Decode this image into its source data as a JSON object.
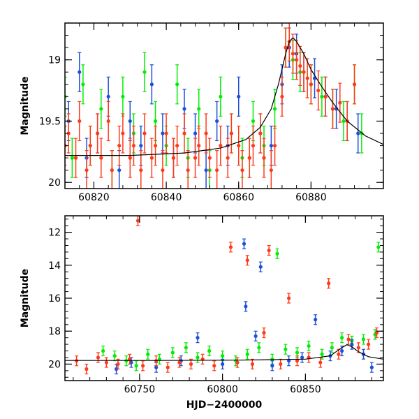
{
  "chart_data": [
    {
      "type": "scatter",
      "panel": "top",
      "ylabel": "Magnitude",
      "xlabel": "",
      "xlim": [
        60812,
        60900
      ],
      "ylim": [
        20.05,
        18.7
      ],
      "y_inverted": true,
      "x_tick_labels": [
        "60820",
        "60840",
        "60860",
        "60880"
      ],
      "x_ticks": [
        60820,
        60840,
        60860,
        60880
      ],
      "y_tick_labels": [
        "19",
        "19.5",
        "20"
      ],
      "y_ticks": [
        19.0,
        19.5,
        20.0
      ],
      "series": [
        {
          "color": "#00ee00",
          "x": [
            60812,
            60814,
            60817,
            60819,
            60822,
            60825,
            60828,
            60831,
            60834,
            60837,
            60840,
            60843,
            60846,
            60849,
            60852,
            60855,
            60858,
            60861,
            60864,
            60867,
            60870,
            60873,
            60875,
            60877,
            60880,
            60883,
            60886,
            60889,
            60892,
            60894
          ],
          "y": [
            19.3,
            19.8,
            19.2,
            19.7,
            19.4,
            19.9,
            19.3,
            19.6,
            19.1,
            19.5,
            19.7,
            19.2,
            19.8,
            19.4,
            19.9,
            19.3,
            19.6,
            19.8,
            19.5,
            19.7,
            19.4,
            18.9,
            19.0,
            19.1,
            19.2,
            19.3,
            19.4,
            19.5,
            19.2,
            19.6
          ]
        },
        {
          "color": "#1e4fd8",
          "x": [
            60813,
            60816,
            60818,
            60821,
            60824,
            60827,
            60830,
            60833,
            60836,
            60839,
            60842,
            60845,
            60848,
            60851,
            60854,
            60857,
            60860,
            60863,
            60866,
            60869,
            60872,
            60874,
            60876,
            60878,
            60881,
            60884,
            60887,
            60890,
            60893
          ],
          "y": [
            19.5,
            19.1,
            19.8,
            19.6,
            19.3,
            19.9,
            19.5,
            19.7,
            19.2,
            19.6,
            19.8,
            19.4,
            19.6,
            19.9,
            19.5,
            19.7,
            19.3,
            19.8,
            19.6,
            19.7,
            19.2,
            18.9,
            18.95,
            19.1,
            19.15,
            19.3,
            19.4,
            19.5,
            19.6
          ]
        },
        {
          "color": "#ff3a1a",
          "x": [
            60812,
            60813,
            60815,
            60816,
            60818,
            60819,
            60821,
            60822,
            60824,
            60825,
            60827,
            60828,
            60830,
            60831,
            60833,
            60834,
            60836,
            60837,
            60839,
            60840,
            60842,
            60843,
            60845,
            60846,
            60848,
            60849,
            60851,
            60852,
            60854,
            60855,
            60857,
            60858,
            60860,
            60861,
            60863,
            60864,
            60866,
            60867,
            60869,
            60870,
            60872,
            60873,
            60874,
            60875,
            60876,
            60877,
            60878,
            60879,
            60880,
            60882,
            60884,
            60886,
            60888,
            60890,
            60892
          ],
          "y": [
            19.7,
            19.6,
            19.8,
            19.5,
            19.9,
            19.7,
            19.6,
            19.8,
            19.5,
            19.9,
            19.7,
            19.6,
            19.8,
            19.7,
            19.9,
            19.6,
            19.8,
            19.7,
            19.9,
            19.6,
            19.8,
            19.7,
            19.6,
            19.9,
            19.8,
            19.7,
            19.6,
            19.8,
            19.9,
            19.7,
            19.8,
            19.6,
            19.7,
            19.9,
            19.8,
            19.7,
            19.6,
            19.8,
            19.9,
            19.7,
            19.3,
            18.9,
            18.85,
            18.95,
            19.0,
            19.05,
            19.1,
            19.15,
            19.2,
            19.25,
            19.3,
            19.4,
            19.35,
            19.5,
            19.2
          ]
        }
      ],
      "model_curve": {
        "color": "#000000",
        "x": [
          60812,
          60830,
          60845,
          60855,
          60862,
          60866,
          60869,
          60871,
          60873,
          60874,
          60875,
          60876,
          60878,
          60880,
          60883,
          60886,
          60890,
          60895,
          60900
        ],
        "y": [
          19.78,
          19.78,
          19.76,
          19.72,
          19.65,
          19.55,
          19.4,
          19.2,
          18.95,
          18.85,
          18.82,
          18.85,
          18.95,
          19.08,
          19.22,
          19.35,
          19.5,
          19.62,
          19.69
        ]
      }
    },
    {
      "type": "scatter",
      "panel": "bottom",
      "ylabel": "Magnitude",
      "xlabel": "HJD−2400000",
      "xlim": [
        60705,
        60897
      ],
      "ylim": [
        21.0,
        11.0
      ],
      "y_inverted": true,
      "x_tick_labels": [
        "60750",
        "60800",
        "60850"
      ],
      "x_ticks": [
        60750,
        60800,
        60850
      ],
      "y_tick_labels": [
        "12",
        "14",
        "16",
        "18",
        "20"
      ],
      "y_ticks": [
        12,
        14,
        16,
        18,
        20
      ],
      "series": [
        {
          "color": "#00ee00",
          "x": [
            60728,
            60735,
            60742,
            60748,
            60755,
            60762,
            60770,
            60778,
            60785,
            60792,
            60800,
            60808,
            60815,
            60822,
            60830,
            60833,
            60838,
            60845,
            60852,
            60860,
            60866,
            60872,
            60878,
            60885,
            60892,
            60894
          ],
          "y": [
            19.2,
            19.5,
            19.8,
            20.1,
            19.4,
            19.7,
            19.3,
            19.0,
            19.6,
            19.2,
            19.5,
            19.8,
            19.4,
            19.0,
            19.7,
            13.3,
            19.1,
            19.3,
            18.9,
            19.4,
            19.0,
            18.4,
            18.6,
            18.5,
            18.2,
            12.9
          ]
        },
        {
          "color": "#1e4fd8",
          "x": [
            60736,
            60745,
            60760,
            60775,
            60785,
            60800,
            60813,
            60814,
            60820,
            60823,
            60830,
            60840,
            60848,
            60856,
            60865,
            60872,
            60878,
            60885,
            60890
          ],
          "y": [
            20.3,
            19.9,
            20.2,
            19.8,
            18.4,
            20.0,
            12.7,
            16.5,
            18.3,
            14.1,
            20.1,
            19.8,
            19.6,
            17.3,
            19.5,
            19.2,
            18.8,
            19.4,
            20.2
          ]
        },
        {
          "color": "#ff3a1a",
          "x": [
            60712,
            60718,
            60725,
            60730,
            60737,
            60744,
            60749,
            60752,
            60760,
            60767,
            60774,
            60781,
            60788,
            60795,
            60805,
            60809,
            60815,
            60818,
            60825,
            60828,
            60835,
            60840,
            60845,
            60852,
            60859,
            60864,
            60870,
            60876,
            60882,
            60888,
            60893
          ],
          "y": [
            19.8,
            20.3,
            19.6,
            19.9,
            20.0,
            19.7,
            11.3,
            20.1,
            19.8,
            20.2,
            19.9,
            20.0,
            19.7,
            20.1,
            12.9,
            19.9,
            13.7,
            20.0,
            18.1,
            13.1,
            20.0,
            16.0,
            19.8,
            19.6,
            19.9,
            15.1,
            19.4,
            18.5,
            19.0,
            18.8,
            18.1
          ]
        }
      ],
      "model_curve": {
        "color": "#000000",
        "x": [
          60705,
          60760,
          60810,
          60850,
          60865,
          60872,
          60875,
          60878,
          60882,
          60888,
          60897
        ],
        "y": [
          19.78,
          19.78,
          19.76,
          19.7,
          19.5,
          19.0,
          18.82,
          18.95,
          19.25,
          19.55,
          19.7
        ]
      }
    }
  ]
}
